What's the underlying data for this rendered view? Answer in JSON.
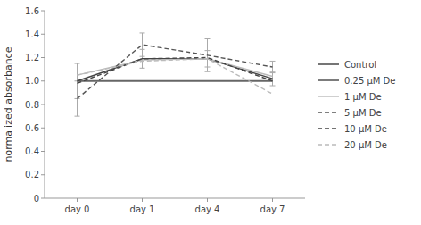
{
  "chart_data": {
    "type": "line",
    "ylabel": "normalized absorbance",
    "categories": [
      "day 0",
      "day 1",
      "day 4",
      "day 7"
    ],
    "series": [
      {
        "name": "Control",
        "color": "#666666",
        "line_style": "solid",
        "values": [
          1.0,
          1.0,
          1.0,
          1.0
        ]
      },
      {
        "name": "0.25 μM De",
        "color": "#444444",
        "line_style": "solid",
        "values": [
          1.0,
          1.19,
          1.19,
          1.02
        ],
        "errors": [
          0.15,
          0.08,
          0.07,
          0.06
        ]
      },
      {
        "name": "1 μM De",
        "color": "#bbbbbb",
        "line_style": "solid",
        "values": [
          1.05,
          1.18,
          1.19,
          1.04
        ]
      },
      {
        "name": "5 μM De",
        "color": "#555555",
        "line_style": "dashed",
        "values": [
          0.85,
          1.31,
          1.22,
          1.12
        ],
        "errors": [
          0.15,
          0.1,
          0.14,
          0.05
        ]
      },
      {
        "name": "10 μM De",
        "color": "#444444",
        "line_style": "dashed",
        "values": [
          0.98,
          1.19,
          1.2,
          1.0
        ]
      },
      {
        "name": "20 μM De",
        "color": "#bbbbbb",
        "line_style": "dashed",
        "values": [
          1.05,
          1.17,
          1.19,
          0.89
        ]
      }
    ],
    "ylim": [
      0,
      1.6
    ],
    "yticks": [
      0,
      0.2,
      0.4,
      0.6,
      0.8,
      {
        "value": 1.0,
        "label": "1.0"
      },
      1.2,
      1.4,
      1.6
    ],
    "grid": false,
    "legend": "right"
  }
}
